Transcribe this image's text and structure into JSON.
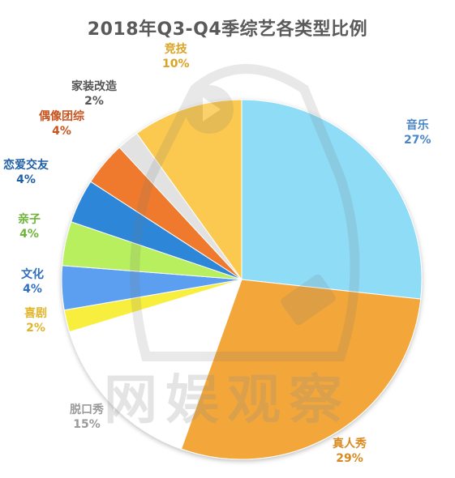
{
  "chart_data": {
    "type": "pie",
    "title": "2018年Q3-Q4季综艺各类型比例",
    "slices": [
      {
        "name": "音乐",
        "label": "27%",
        "value": 27,
        "color": "#8fdcf7",
        "label_color": "#4a86c8"
      },
      {
        "name": "真人秀",
        "label": "29%",
        "value": 29,
        "color": "#f3a73a",
        "label_color": "#d98a1e"
      },
      {
        "name": "脱口秀",
        "label": "15%",
        "value": 15,
        "color": "#ffffff",
        "label_color": "#9a9a9a"
      },
      {
        "name": "喜剧",
        "label": "2%",
        "value": 2,
        "color": "#f7ee3e",
        "label_color": "#e0b52a"
      },
      {
        "name": "文化",
        "label": "4%",
        "value": 4,
        "color": "#5b9ff0",
        "label_color": "#2f6fc0"
      },
      {
        "name": "亲子",
        "label": "4%",
        "value": 4,
        "color": "#b7ef5e",
        "label_color": "#6fb33a"
      },
      {
        "name": "恋爱交友",
        "label": "4%",
        "value": 4,
        "color": "#2f86d8",
        "label_color": "#1f5fa8"
      },
      {
        "name": "偶像团综",
        "label": "4%",
        "value": 4,
        "color": "#ef7a2e",
        "label_color": "#c9541e"
      },
      {
        "name": "家装改造",
        "label": "2%",
        "value": 2,
        "color": "#e2e2e2",
        "label_color": "#555555"
      },
      {
        "name": "竞技",
        "label": "10%",
        "value": 10,
        "color": "#fbc94f",
        "label_color": "#d9a323"
      }
    ]
  },
  "watermark": {
    "text": "网娱观察",
    "logo": "penguin-play-logo"
  }
}
